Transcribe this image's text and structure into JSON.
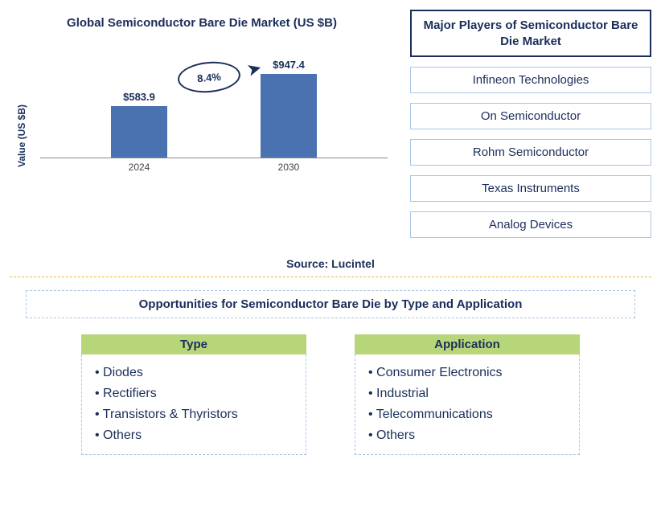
{
  "chart": {
    "title": "Global Semiconductor Bare Die Market (US $B)",
    "y_label": "Value (US $B)",
    "type": "bar",
    "categories": [
      "2024",
      "2030"
    ],
    "values": [
      583.9,
      947.4
    ],
    "value_labels": [
      "$583.9",
      "$947.4"
    ],
    "bar_color": "#4a72b0",
    "ylim_max": 1000,
    "growth_label": "8.4%",
    "title_color": "#1a2e5a",
    "ellipse_border_color": "#1a2e5a",
    "axis_color": "#888888"
  },
  "players": {
    "header": "Major Players of Semiconductor Bare Die Market",
    "items": [
      "Infineon Technologies",
      "On Semiconductor",
      "Rohm Semiconductor",
      "Texas Instruments",
      "Analog Devices"
    ],
    "header_border_color": "#1a2e5a",
    "item_border_color": "#a9c5e8"
  },
  "source": {
    "label": "Source: Lucintel",
    "divider_color": "#e8b83a"
  },
  "opportunities": {
    "header": "Opportunities for Semiconductor Bare Die by Type and Application",
    "columns": [
      {
        "header": "Type",
        "items": [
          "Diodes",
          "Rectifiers",
          "Transistors & Thyristors",
          "Others"
        ]
      },
      {
        "header": "Application",
        "items": [
          "Consumer Electronics",
          "Industrial",
          "Telecommunications",
          "Others"
        ]
      }
    ],
    "col_header_bg": "#b7d67a",
    "text_color": "#1a2e5a",
    "border_color": "#a9c5e8"
  }
}
